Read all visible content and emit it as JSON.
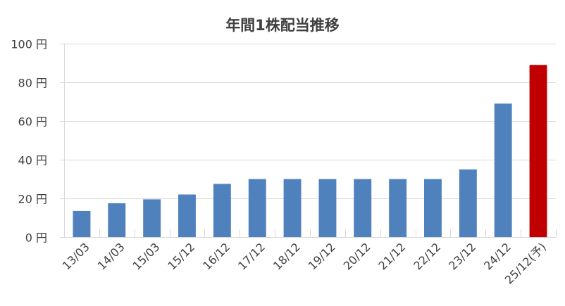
{
  "chart_data": {
    "type": "bar",
    "title": "年間1株配当推移",
    "categories": [
      "13/03",
      "14/03",
      "15/03",
      "15/12",
      "16/12",
      "17/12",
      "18/12",
      "19/12",
      "20/12",
      "21/12",
      "22/12",
      "23/12",
      "24/12",
      "25/12(予)"
    ],
    "values": [
      13.5,
      17.5,
      19.5,
      22,
      27.5,
      30,
      30,
      30,
      30,
      30,
      30,
      35,
      69,
      89
    ],
    "ylim": [
      0,
      100
    ],
    "y_ticks": [
      0,
      20,
      40,
      60,
      80,
      100
    ],
    "y_tick_labels": [
      "0 円",
      "20 円",
      "40 円",
      "60 円",
      "80 円",
      "100 円"
    ],
    "grid": true,
    "show_legend": false,
    "bar_colors": [
      "#4F81BD",
      "#4F81BD",
      "#4F81BD",
      "#4F81BD",
      "#4F81BD",
      "#4F81BD",
      "#4F81BD",
      "#4F81BD",
      "#4F81BD",
      "#4F81BD",
      "#4F81BD",
      "#4F81BD",
      "#4F81BD",
      "#C00000"
    ],
    "gridline_color": "#D9D9D9"
  }
}
